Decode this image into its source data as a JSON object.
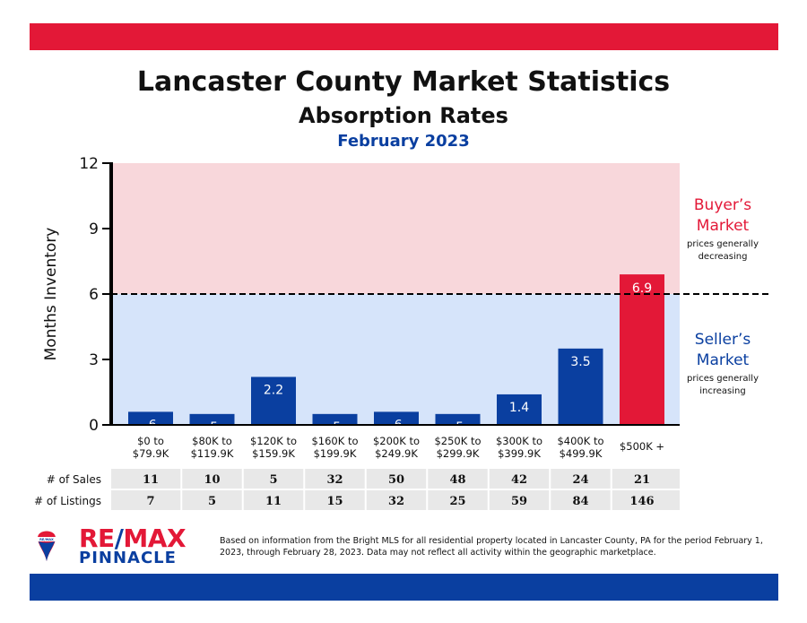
{
  "colors": {
    "red": "#e31837",
    "blue": "#0a3fa0",
    "buyer_zone": "#f8d7db",
    "seller_zone": "#d6e4fa"
  },
  "header": {
    "title": "Lancaster County Market Statistics",
    "subtitle": "Absorption Rates",
    "period": "February 2023"
  },
  "zones": {
    "buyer_title_1": "Buyer’s",
    "buyer_title_2": "Market",
    "buyer_note_1": "prices generally",
    "buyer_note_2": "decreasing",
    "seller_title_1": "Seller’s",
    "seller_title_2": "Market",
    "seller_note_1": "prices generally",
    "seller_note_2": "increasing"
  },
  "table": {
    "sales_label": "# of Sales",
    "listings_label": "# of Listings"
  },
  "logo": {
    "brand": "RE/MAX",
    "brand_left": "RE",
    "brand_slash": "/",
    "brand_right": "MAX",
    "office": "PINNACLE",
    "balloon_text": "RE/MAX"
  },
  "footnote": "Based on information from the Bright MLS for all residential property located in Lancaster County, PA for the period February 1, 2023, through February 28, 2023.  Data may not reflect all activity within the geographic marketplace.",
  "chart_data": {
    "type": "bar",
    "ylabel": "Months Inventory",
    "ylim": [
      0,
      12
    ],
    "yticks": [
      "0",
      "3",
      "6",
      "9",
      "12"
    ],
    "threshold": 6,
    "categories": [
      [
        "$0 to",
        "$79.9K"
      ],
      [
        "$80K to",
        "$119.9K"
      ],
      [
        "$120K to",
        "$159.9K"
      ],
      [
        "$160K to",
        "$199.9K"
      ],
      [
        "$200K to",
        "$249.9K"
      ],
      [
        "$250K to",
        "$299.9K"
      ],
      [
        "$300K to",
        "$399.9K"
      ],
      [
        "$400K to",
        "$499.9K"
      ],
      [
        "$500K +"
      ]
    ],
    "values": [
      0.6,
      0.5,
      2.2,
      0.5,
      0.6,
      0.5,
      1.4,
      3.5,
      6.9
    ],
    "value_labels": [
      ".6",
      ".5",
      "2.2",
      ".5",
      ".6",
      ".5",
      "1.4",
      "3.5",
      "6.9"
    ],
    "bar_colors": [
      "#0a3fa0",
      "#0a3fa0",
      "#0a3fa0",
      "#0a3fa0",
      "#0a3fa0",
      "#0a3fa0",
      "#0a3fa0",
      "#0a3fa0",
      "#e31837"
    ],
    "sales": [
      "11",
      "10",
      "5",
      "32",
      "50",
      "48",
      "42",
      "24",
      "21"
    ],
    "listings": [
      "7",
      "5",
      "11",
      "15",
      "32",
      "25",
      "59",
      "84",
      "146"
    ]
  }
}
